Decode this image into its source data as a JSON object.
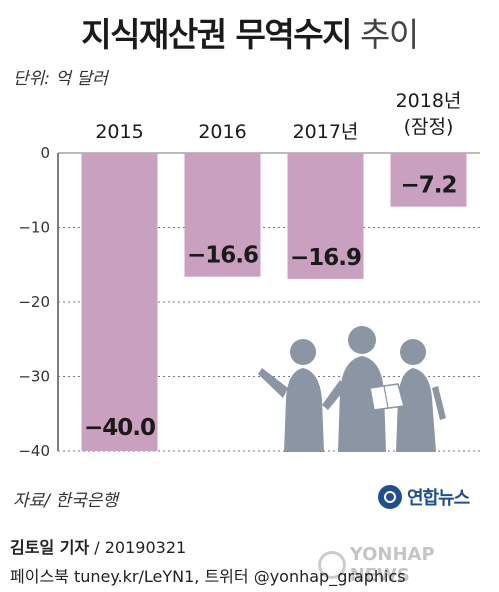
{
  "title": {
    "main": "지식재산권 무역수지",
    "sub": "추이"
  },
  "unit_label": "단위: 억 달러",
  "source_label": "자료/ 한국은행",
  "logo_text": "연합뉴스",
  "credit": {
    "author": "김토일 기자",
    "date": "/ 20190321"
  },
  "social": "페이스북 tuney.kr/LeYN1, 트위터 @yonhap_graphics",
  "watermark": "YONHAP NEWS",
  "colors": {
    "bar": "#c9a0c0",
    "grid": "#777777",
    "axis": "#555555",
    "silhouette": "#8c95a3"
  },
  "icons": [
    "yonhap-logo-icon",
    "people-silhouette-icon"
  ],
  "chart_data": {
    "type": "bar",
    "categories": [
      "2015",
      "2016",
      "2017년",
      "2018년\n(잠정)"
    ],
    "values": [
      -40.0,
      -16.6,
      -16.9,
      -7.2
    ],
    "value_labels": [
      "−40.0",
      "−16.6",
      "−16.9",
      "−7.2"
    ],
    "yticks": [
      0,
      -10,
      -20,
      -30,
      -40
    ],
    "ylim": [
      -40,
      0
    ],
    "grid": true,
    "title": "지식재산권 무역수지 추이"
  }
}
